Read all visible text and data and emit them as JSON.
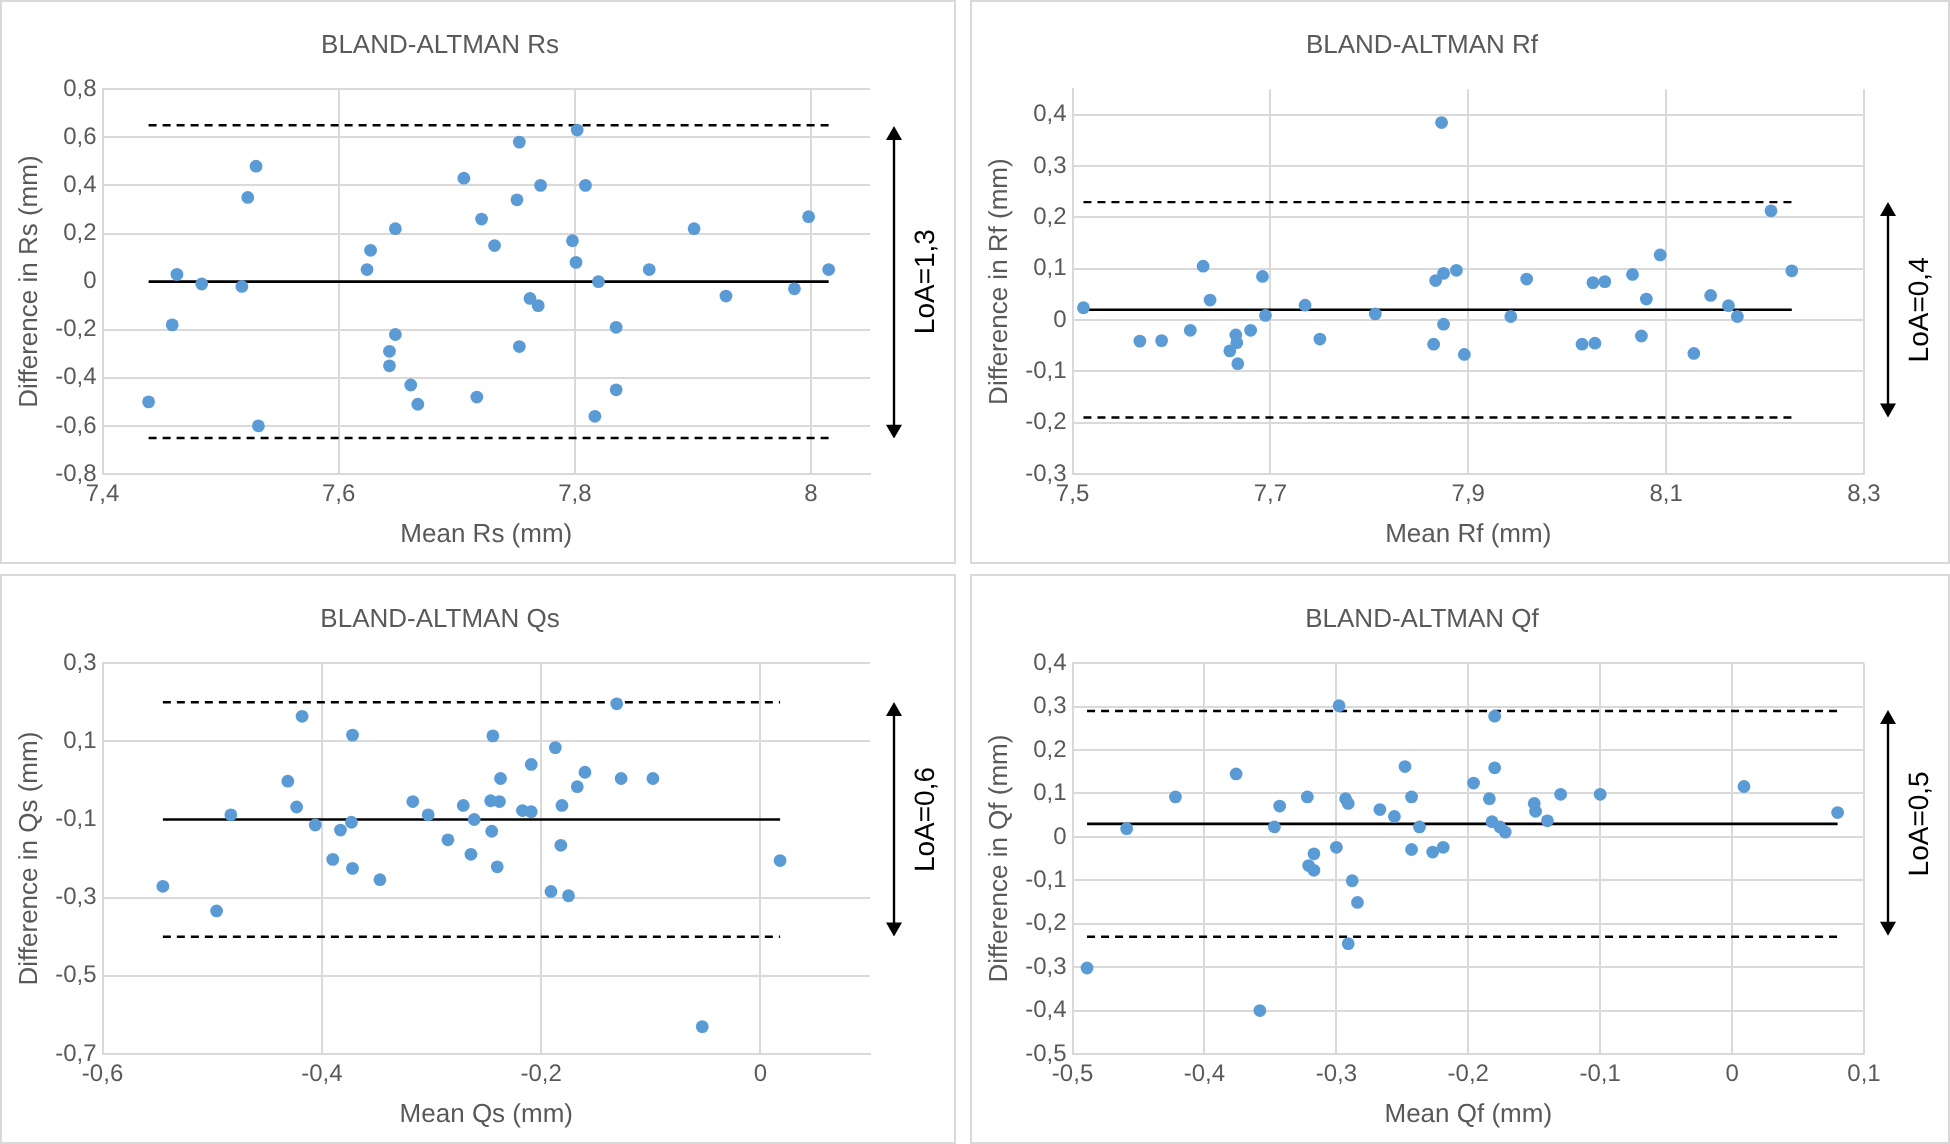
{
  "chart_data": [
    {
      "type": "scatter",
      "title": "BLAND-ALTMAN Rs",
      "xlabel": "Mean Rs (mm)",
      "ylabel": "Difference in Rs (mm)",
      "annotations": [
        "LoA=1,3"
      ],
      "grid": true,
      "marker": "circle",
      "xlim": [
        7.4,
        8.05
      ],
      "xticks": [
        {
          "value": 7.4,
          "label": "7,4"
        },
        {
          "value": 7.6,
          "label": "7,6"
        },
        {
          "value": 7.8,
          "label": "7,8"
        },
        {
          "value": 8,
          "label": "8"
        }
      ],
      "ylim": [
        -0.8,
        0.8
      ],
      "yticks": [
        {
          "value": -0.8,
          "label": "-0,8"
        },
        {
          "value": -0.6,
          "label": "-0,6"
        },
        {
          "value": -0.4,
          "label": "-0,4"
        },
        {
          "value": -0.2,
          "label": "-0,2"
        },
        {
          "value": 0,
          "label": "0"
        },
        {
          "value": 0.2,
          "label": "0,2"
        },
        {
          "value": 0.4,
          "label": "0,4"
        },
        {
          "value": 0.6,
          "label": "0,6"
        },
        {
          "value": 0.8,
          "label": "0,8"
        }
      ],
      "ref_lines": [
        {
          "axis": "y",
          "value": 0.65,
          "color": "#000000",
          "line_style": "dashed"
        },
        {
          "axis": "y",
          "value": 0,
          "color": "#000000",
          "line_style": "solid"
        },
        {
          "axis": "y",
          "value": -0.65,
          "color": "#000000",
          "line_style": "dashed"
        }
      ],
      "series": [
        {
          "type": "scatter",
          "color": "#5b9bd5",
          "x": [
            7.439,
            7.459,
            7.463,
            7.484,
            7.518,
            7.523,
            7.53,
            7.532,
            7.624,
            7.627,
            7.643,
            7.643,
            7.648,
            7.648,
            7.661,
            7.667,
            7.706,
            7.717,
            7.721,
            7.732,
            7.751,
            7.753,
            7.753,
            7.762,
            7.769,
            7.771,
            7.798,
            7.801,
            7.802,
            7.809,
            7.817,
            7.82,
            7.835,
            7.835,
            7.863,
            7.901,
            7.928,
            7.986,
            7.998,
            8.015
          ],
          "values": [
            -0.5,
            -0.18,
            0.03,
            -0.01,
            -0.02,
            0.35,
            0.48,
            -0.6,
            0.05,
            0.13,
            -0.29,
            -0.35,
            0.22,
            -0.22,
            -0.43,
            -0.51,
            0.43,
            -0.48,
            0.26,
            0.15,
            0.34,
            0.58,
            -0.27,
            -0.07,
            -0.1,
            0.4,
            0.17,
            0.08,
            0.63,
            0.4,
            -0.56,
            0,
            -0.19,
            -0.45,
            0.05,
            0.22,
            -0.06,
            -0.03,
            0.27,
            0.05
          ]
        }
      ]
    },
    {
      "type": "scatter",
      "title": "BLAND-ALTMAN Rf",
      "xlabel": "Mean Rf (mm)",
      "ylabel": "Difference in Rf (mm)",
      "annotations": [
        "LoA=0,4"
      ],
      "grid": true,
      "marker": "circle",
      "xlim": [
        7.5,
        8.3
      ],
      "xticks": [
        {
          "value": 7.5,
          "label": "7,5"
        },
        {
          "value": 7.7,
          "label": "7,7"
        },
        {
          "value": 7.9,
          "label": "7,9"
        },
        {
          "value": 8.1,
          "label": "8,1"
        },
        {
          "value": 8.3,
          "label": "8,3"
        }
      ],
      "ylim": [
        -0.3,
        0.45
      ],
      "yticks": [
        {
          "value": -0.3,
          "label": "-0,3"
        },
        {
          "value": -0.2,
          "label": "-0,2"
        },
        {
          "value": -0.1,
          "label": "-0,1"
        },
        {
          "value": 0,
          "label": "0"
        },
        {
          "value": 0.1,
          "label": "0,1"
        },
        {
          "value": 0.2,
          "label": "0,2"
        },
        {
          "value": 0.3,
          "label": "0,3"
        },
        {
          "value": 0.4,
          "label": "0,4"
        }
      ],
      "ref_lines": [
        {
          "axis": "y",
          "value": 0.23,
          "color": "#000000",
          "line_style": "dashed"
        },
        {
          "axis": "y",
          "value": 0.02,
          "color": "#000000",
          "line_style": "solid"
        },
        {
          "axis": "y",
          "value": -0.19,
          "color": "#000000",
          "line_style": "dashed"
        }
      ],
      "series": [
        {
          "type": "scatter",
          "color": "#5b9bd5",
          "x": [
            7.511,
            7.568,
            7.59,
            7.619,
            7.632,
            7.639,
            7.659,
            7.665,
            7.666,
            7.667,
            7.68,
            7.692,
            7.695,
            7.735,
            7.75,
            7.806,
            7.865,
            7.867,
            7.873,
            7.875,
            7.875,
            7.888,
            7.896,
            7.943,
            7.959,
            8.015,
            8.026,
            8.028,
            8.038,
            8.066,
            8.075,
            8.08,
            8.094,
            8.128,
            8.145,
            8.163,
            8.172,
            8.206,
            8.227
          ],
          "values": [
            0.024,
            -0.041,
            -0.04,
            -0.02,
            0.105,
            0.039,
            -0.06,
            -0.029,
            -0.044,
            -0.085,
            -0.02,
            0.085,
            0.009,
            0.029,
            -0.037,
            0.012,
            -0.047,
            0.077,
            0.385,
            0.091,
            -0.008,
            0.097,
            -0.067,
            0.007,
            0.08,
            -0.047,
            0.073,
            -0.045,
            0.075,
            0.089,
            -0.031,
            0.041,
            0.127,
            -0.065,
            0.048,
            0.028,
            0.007,
            0.213,
            0.096
          ]
        }
      ]
    },
    {
      "type": "scatter",
      "title": "BLAND-ALTMAN Qs",
      "xlabel": "Mean Qs (mm)",
      "ylabel": "Difference in Qs (mm)",
      "annotations": [
        "LoA=0,6"
      ],
      "grid": true,
      "marker": "circle",
      "xlim": [
        -0.6,
        0.1
      ],
      "xticks": [
        {
          "value": -0.6,
          "label": "-0,6"
        },
        {
          "value": -0.4,
          "label": "-0,4"
        },
        {
          "value": -0.2,
          "label": "-0,2"
        },
        {
          "value": 0,
          "label": "0"
        }
      ],
      "ylim": [
        -0.7,
        0.3
      ],
      "yticks": [
        {
          "value": -0.7,
          "label": "-0,7"
        },
        {
          "value": -0.5,
          "label": "-0,5"
        },
        {
          "value": -0.3,
          "label": "-0,3"
        },
        {
          "value": -0.1,
          "label": "-0,1"
        },
        {
          "value": 0.1,
          "label": "0,1"
        },
        {
          "value": 0.3,
          "label": "0,3"
        }
      ],
      "ref_lines": [
        {
          "axis": "y",
          "value": 0.2,
          "color": "#000000",
          "line_style": "dashed"
        },
        {
          "axis": "y",
          "value": -0.1,
          "color": "#000000",
          "line_style": "solid"
        },
        {
          "axis": "y",
          "value": -0.4,
          "color": "#000000",
          "line_style": "dashed"
        }
      ],
      "series": [
        {
          "type": "scatter",
          "color": "#5b9bd5",
          "x": [
            -0.545,
            -0.496,
            -0.483,
            -0.431,
            -0.423,
            -0.418,
            -0.406,
            -0.39,
            -0.383,
            -0.373,
            -0.372,
            -0.372,
            -0.347,
            -0.317,
            -0.303,
            -0.285,
            -0.271,
            -0.264,
            -0.261,
            -0.246,
            -0.245,
            -0.244,
            -0.24,
            -0.238,
            -0.237,
            -0.217,
            -0.209,
            -0.209,
            -0.191,
            -0.187,
            -0.182,
            -0.181,
            -0.175,
            -0.167,
            -0.16,
            -0.131,
            -0.127,
            -0.098,
            -0.053,
            0.018
          ],
          "values": [
            -0.271,
            -0.334,
            -0.088,
            -0.002,
            -0.068,
            0.164,
            -0.114,
            -0.202,
            -0.127,
            -0.107,
            0.116,
            -0.225,
            -0.254,
            -0.054,
            -0.088,
            -0.152,
            -0.064,
            -0.189,
            -0.1,
            -0.052,
            -0.13,
            0.114,
            -0.221,
            -0.054,
            0.005,
            -0.077,
            -0.08,
            0.041,
            -0.284,
            0.084,
            -0.166,
            -0.064,
            -0.295,
            -0.016,
            0.021,
            0.196,
            0.005,
            0.005,
            -0.63,
            -0.205
          ]
        }
      ]
    },
    {
      "type": "scatter",
      "title": "BLAND-ALTMAN Qf",
      "xlabel": "Mean Qf (mm)",
      "ylabel": "Difference in Qf (mm)",
      "annotations": [
        "LoA=0,5"
      ],
      "grid": true,
      "marker": "circle",
      "xlim": [
        -0.5,
        0.1
      ],
      "xticks": [
        {
          "value": -0.5,
          "label": "-0,5"
        },
        {
          "value": -0.4,
          "label": "-0,4"
        },
        {
          "value": -0.3,
          "label": "-0,3"
        },
        {
          "value": -0.2,
          "label": "-0,2"
        },
        {
          "value": -0.1,
          "label": "-0,1"
        },
        {
          "value": 0,
          "label": "0"
        },
        {
          "value": 0.1,
          "label": "0,1"
        }
      ],
      "ylim": [
        -0.5,
        0.4
      ],
      "yticks": [
        {
          "value": -0.5,
          "label": "-0,5"
        },
        {
          "value": -0.4,
          "label": "-0,4"
        },
        {
          "value": -0.3,
          "label": "-0,3"
        },
        {
          "value": -0.2,
          "label": "-0,2"
        },
        {
          "value": -0.1,
          "label": "-0,1"
        },
        {
          "value": 0,
          "label": "0"
        },
        {
          "value": 0.1,
          "label": "0,1"
        },
        {
          "value": 0.2,
          "label": "0,2"
        },
        {
          "value": 0.3,
          "label": "0,3"
        },
        {
          "value": 0.4,
          "label": "0,4"
        }
      ],
      "ref_lines": [
        {
          "axis": "y",
          "value": 0.29,
          "color": "#000000",
          "line_style": "dashed"
        },
        {
          "axis": "y",
          "value": 0.03,
          "color": "#000000",
          "line_style": "solid"
        },
        {
          "axis": "y",
          "value": -0.23,
          "color": "#000000",
          "line_style": "dashed"
        }
      ],
      "series": [
        {
          "type": "scatter",
          "color": "#5b9bd5",
          "x": [
            -0.489,
            -0.459,
            -0.422,
            -0.376,
            -0.358,
            -0.347,
            -0.343,
            -0.322,
            -0.321,
            -0.317,
            -0.317,
            -0.3,
            -0.298,
            -0.293,
            -0.291,
            -0.291,
            -0.288,
            -0.284,
            -0.267,
            -0.256,
            -0.248,
            -0.243,
            -0.243,
            -0.237,
            -0.227,
            -0.219,
            -0.196,
            -0.184,
            -0.182,
            -0.18,
            -0.18,
            -0.176,
            -0.172,
            -0.15,
            -0.149,
            -0.14,
            -0.13,
            -0.1,
            0.009,
            0.08
          ],
          "values": [
            -0.302,
            0.019,
            0.092,
            0.145,
            -0.4,
            0.023,
            0.071,
            0.092,
            -0.066,
            -0.039,
            -0.077,
            -0.024,
            0.302,
            0.088,
            0.077,
            -0.246,
            -0.101,
            -0.151,
            0.063,
            0.047,
            0.162,
            0.092,
            -0.029,
            0.023,
            -0.035,
            -0.024,
            0.124,
            0.088,
            0.035,
            0.278,
            0.159,
            0.023,
            0.011,
            0.077,
            0.059,
            0.037,
            0.098,
            0.098,
            0.116,
            0.056
          ]
        }
      ]
    }
  ]
}
